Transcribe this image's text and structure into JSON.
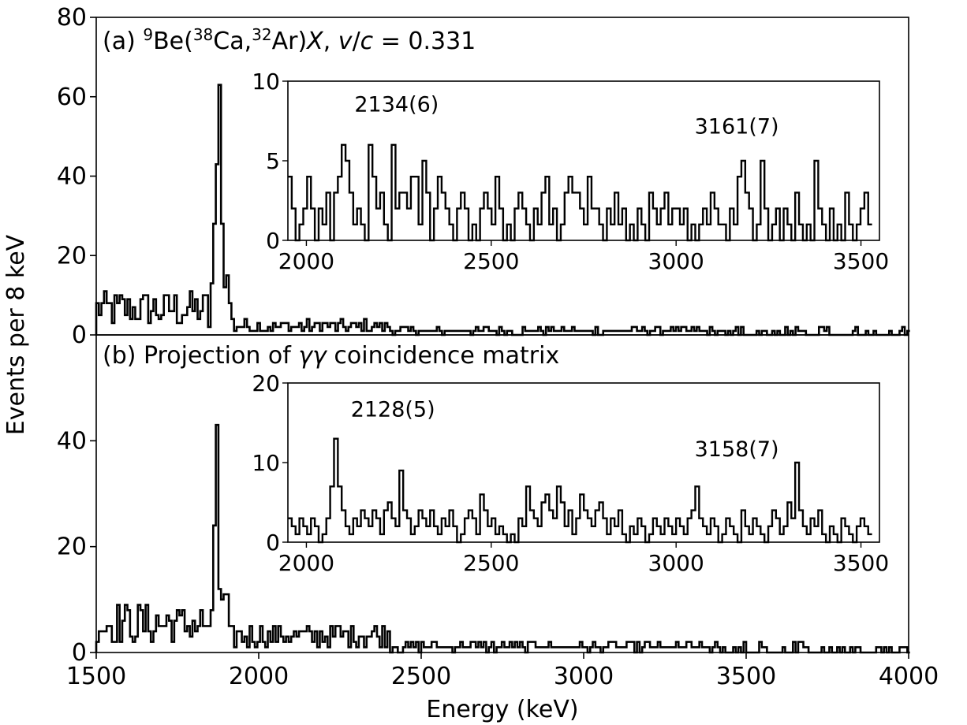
{
  "chart_data": {
    "type": "histogram",
    "xlabel": "Energy (keV)",
    "ylabel": "Events per 8 keV",
    "xlim": [
      1500,
      4000
    ],
    "xticks": [
      1500,
      2000,
      2500,
      3000,
      3500,
      4000
    ],
    "bin_width": 8,
    "panels": [
      {
        "id": "a",
        "label_prefix": "(a) ",
        "label_sup1": "9",
        "label_be": "Be(",
        "label_sup2": "38",
        "label_ca": "Ca,",
        "label_sup3": "32",
        "label_ar": "Ar)",
        "label_x": "X",
        "label_comma": ", ",
        "label_v": "v",
        "label_slash": "/",
        "label_c": "c",
        "label_eq": " = 0.331",
        "ylim": [
          0,
          80
        ],
        "yticks": [
          0,
          20,
          40,
          60,
          80
        ],
        "peaks": [
          {
            "e": 1864,
            "h": 43
          },
          {
            "e": 1872,
            "h": 63
          },
          {
            "e": 1856,
            "h": 28
          },
          {
            "e": 1880,
            "h": 28
          },
          {
            "e": 1848,
            "h": 13
          },
          {
            "e": 1888,
            "h": 12
          },
          {
            "e": 1896,
            "h": 15
          },
          {
            "e": 1904,
            "h": 8
          },
          {
            "e": 1912,
            "h": 4
          }
        ],
        "background": {
          "start": 1500,
          "end": 4000,
          "low_region_end": 1840,
          "low_level": 6,
          "mid_level": 2,
          "high_level": 1
        },
        "inset": {
          "xlim": [
            1950,
            3550
          ],
          "ylim": [
            0,
            10
          ],
          "xticks": [
            2000,
            2500,
            3000,
            3500
          ],
          "yticks": [
            0,
            5,
            10
          ],
          "annotations": [
            {
              "text": "2134(6)",
              "x": 2130,
              "y": 8.1
            },
            {
              "text": "3161(7)",
              "x": 3050,
              "y": 6.7
            }
          ],
          "values": [
            4,
            2,
            0,
            1,
            2,
            4,
            2,
            0,
            2,
            1,
            3,
            0,
            3,
            4,
            6,
            5,
            3,
            1,
            2,
            1,
            0,
            6,
            4,
            2,
            3,
            1,
            0,
            6,
            2,
            3,
            3,
            2,
            4,
            4,
            1,
            5,
            3,
            0,
            2,
            4,
            3,
            2,
            1,
            0,
            2,
            3,
            2,
            0,
            1,
            0,
            2,
            3,
            2,
            1,
            4,
            2,
            0,
            1,
            0,
            2,
            3,
            2,
            1,
            0,
            2,
            1,
            3,
            4,
            1,
            2,
            0,
            1,
            3,
            4,
            3,
            3,
            2,
            1,
            4,
            2,
            2,
            1,
            0,
            2,
            1,
            3,
            1,
            2,
            0,
            1,
            0,
            2,
            1,
            0,
            3,
            2,
            1,
            2,
            3,
            1,
            2,
            2,
            1,
            2,
            0,
            1,
            0,
            1,
            2,
            1,
            3,
            2,
            1,
            1,
            0,
            2,
            1,
            4,
            5,
            3,
            2,
            0,
            1,
            5,
            2,
            0,
            1,
            2,
            0,
            2,
            1,
            0,
            3,
            1,
            0,
            1,
            0,
            5,
            2,
            1,
            0,
            2,
            0,
            1,
            0,
            3,
            1,
            0,
            1,
            2,
            3,
            1
          ]
        }
      },
      {
        "id": "b",
        "label_prefix": "(b) Projection of ",
        "label_gg": "γγ",
        "label_rest": " coincidence matrix",
        "ylim": [
          0,
          60
        ],
        "yticks": [
          0,
          20,
          40
        ],
        "peaks": [
          {
            "e": 1864,
            "h": 43
          },
          {
            "e": 1856,
            "h": 24
          },
          {
            "e": 1872,
            "h": 12
          },
          {
            "e": 1848,
            "h": 8
          },
          {
            "e": 1880,
            "h": 10
          },
          {
            "e": 1888,
            "h": 11
          },
          {
            "e": 1896,
            "h": 11
          },
          {
            "e": 1904,
            "h": 5
          }
        ],
        "background": {
          "start": 1500,
          "end": 4000,
          "low_region_end": 1840,
          "low_level": 5,
          "mid_level": 3,
          "high_level": 1
        },
        "inset": {
          "xlim": [
            1950,
            3550
          ],
          "ylim": [
            0,
            20
          ],
          "xticks": [
            2000,
            2500,
            3000,
            3500
          ],
          "yticks": [
            0,
            10,
            20
          ],
          "annotations": [
            {
              "text": "2128(5)",
              "x": 2120,
              "y": 15.8
            },
            {
              "text": "3158(7)",
              "x": 3050,
              "y": 10.8
            }
          ],
          "values": [
            3,
            2,
            1,
            3,
            2,
            1,
            3,
            2,
            0,
            1,
            3,
            7,
            13,
            7,
            4,
            2,
            1,
            3,
            2,
            4,
            3,
            2,
            4,
            3,
            1,
            4,
            5,
            3,
            2,
            9,
            4,
            3,
            1,
            2,
            4,
            3,
            2,
            4,
            2,
            1,
            3,
            2,
            4,
            2,
            0,
            1,
            3,
            4,
            3,
            1,
            6,
            4,
            2,
            3,
            1,
            2,
            1,
            0,
            1,
            0,
            3,
            2,
            7,
            4,
            3,
            2,
            5,
            6,
            4,
            3,
            7,
            5,
            2,
            4,
            1,
            3,
            6,
            4,
            3,
            2,
            4,
            5,
            3,
            1,
            3,
            2,
            4,
            1,
            0,
            2,
            1,
            3,
            2,
            0,
            1,
            3,
            2,
            1,
            3,
            2,
            1,
            3,
            2,
            1,
            3,
            4,
            7,
            3,
            2,
            1,
            3,
            2,
            0,
            1,
            3,
            2,
            1,
            0,
            4,
            2,
            1,
            3,
            2,
            1,
            0,
            2,
            4,
            3,
            1,
            2,
            5,
            3,
            10,
            4,
            2,
            1,
            3,
            2,
            4,
            1,
            0,
            2,
            1,
            0,
            3,
            2,
            1,
            0,
            2,
            3,
            2,
            1
          ]
        }
      }
    ]
  }
}
